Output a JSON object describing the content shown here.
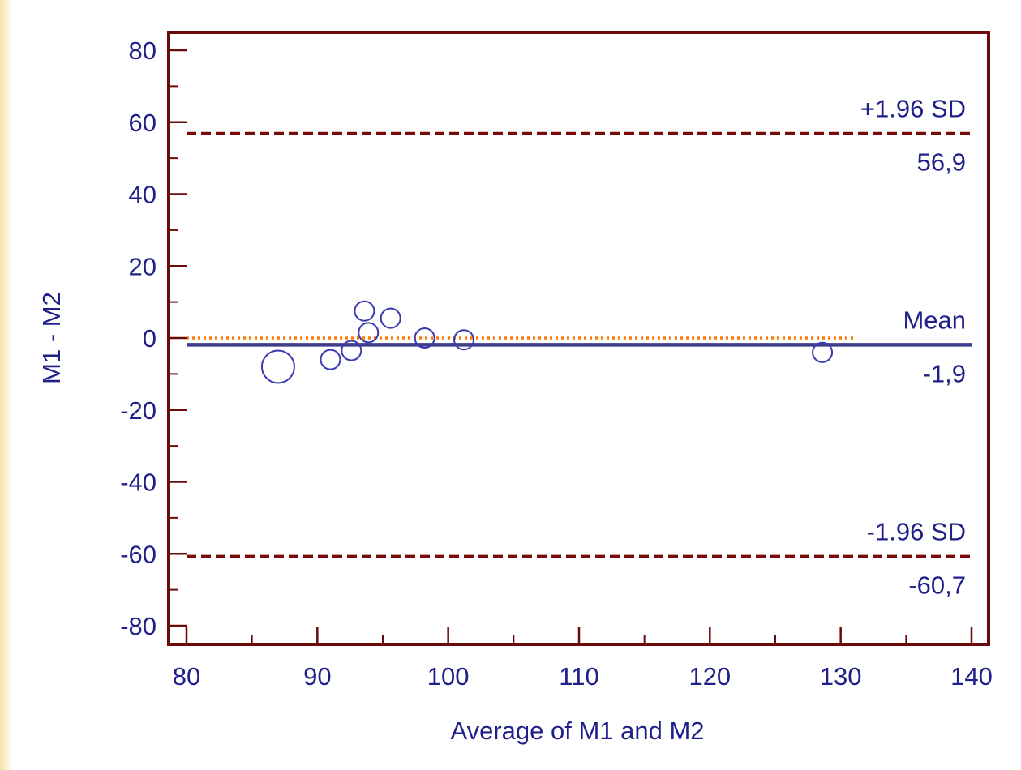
{
  "chart_data": {
    "type": "scatter",
    "xlabel": "Average of M1 and M2",
    "ylabel": "M1 - M2",
    "xlim": [
      80,
      140
    ],
    "ylim": [
      -80,
      80
    ],
    "x_ticks": [
      80,
      90,
      100,
      110,
      120,
      130,
      140
    ],
    "y_ticks": [
      80,
      60,
      40,
      20,
      0,
      -20,
      -40,
      -60,
      -80
    ],
    "x_tick_labels": [
      "80",
      "90",
      "100",
      "110",
      "120",
      "130",
      "140"
    ],
    "y_tick_labels": [
      "80",
      "60",
      "40",
      "20",
      "0",
      "-20",
      "-40",
      "-60",
      "-80"
    ],
    "points": [
      {
        "x": 87.0,
        "y": -8.0,
        "size": 2
      },
      {
        "x": 91.0,
        "y": -6.0,
        "size": 1
      },
      {
        "x": 92.6,
        "y": -3.5,
        "size": 1
      },
      {
        "x": 93.6,
        "y": 7.5,
        "size": 1
      },
      {
        "x": 93.9,
        "y": 1.5,
        "size": 1
      },
      {
        "x": 95.6,
        "y": 5.5,
        "size": 1
      },
      {
        "x": 98.2,
        "y": 0.0,
        "size": 1
      },
      {
        "x": 101.2,
        "y": -0.5,
        "size": 1
      },
      {
        "x": 128.6,
        "y": -4.0,
        "size": 1
      }
    ],
    "reference_lines": [
      {
        "label": "+1.96 SD",
        "value": 56.9,
        "value_label": "56,9",
        "style": "dashed",
        "color": "#7a0a0a"
      },
      {
        "label": "Mean",
        "value": -1.9,
        "value_label": "-1,9",
        "style": "solid",
        "color": "#3d3d8c"
      },
      {
        "label": "-1.96 SD",
        "value": -60.7,
        "value_label": "-60,7",
        "style": "dashed",
        "color": "#7a0a0a"
      }
    ],
    "zero_line": {
      "value": 0,
      "style": "dotted",
      "color": "#ff7a00",
      "x_end": 131
    },
    "colors": {
      "frame": "#6b0a0a",
      "text": "#1f1f8a",
      "points": "#3a3ab0",
      "background": "#ffffff"
    },
    "grid": false
  }
}
